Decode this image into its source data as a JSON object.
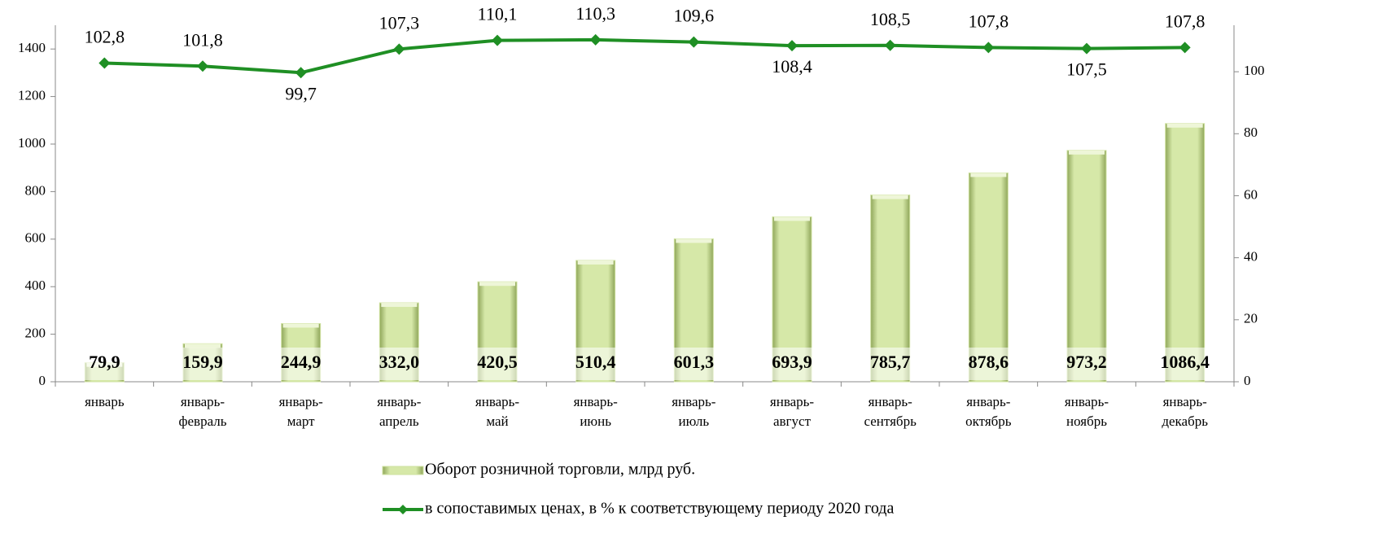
{
  "chart_data": {
    "type": "bar-line",
    "categories": [
      [
        "январь"
      ],
      [
        "январь-",
        "февраль"
      ],
      [
        "январь-",
        "март"
      ],
      [
        "январь-",
        "апрель"
      ],
      [
        "январь-",
        "май"
      ],
      [
        "январь-",
        "июнь"
      ],
      [
        "январь-",
        "июль"
      ],
      [
        "январь-",
        "август"
      ],
      [
        "январь-",
        "сентябрь"
      ],
      [
        "январь-",
        "октябрь"
      ],
      [
        "январь-",
        "ноябрь"
      ],
      [
        "январь-",
        "декабрь"
      ]
    ],
    "series": [
      {
        "name": "Оборот розничной торговли, млрд руб.",
        "type": "bar",
        "color": "#cfe2a0",
        "values": [
          79.9,
          159.9,
          244.9,
          332.0,
          420.5,
          510.4,
          601.3,
          693.9,
          785.7,
          878.6,
          973.2,
          1086.4
        ],
        "value_labels": [
          "79,9",
          "159,9",
          "244,9",
          "332,0",
          "420,5",
          "510,4",
          "601,3",
          "693,9",
          "785,7",
          "878,6",
          "973,2",
          "1086,4"
        ]
      },
      {
        "name": "в сопоставимых ценах, в % к соответствующему периоду 2020 года",
        "type": "line",
        "axis": "y2",
        "color": "#1f8f24",
        "values": [
          102.8,
          101.8,
          99.7,
          107.3,
          110.1,
          110.3,
          109.6,
          108.4,
          108.5,
          107.8,
          107.5,
          107.8
        ],
        "value_labels": [
          "102,8",
          "101,8",
          "99,7",
          "107,3",
          "110,1",
          "110,3",
          "109,6",
          "108,4",
          "108,5",
          "107,8",
          "107,5",
          "107,8"
        ]
      }
    ],
    "ylim": [
      0,
      1500
    ],
    "yticks": [
      0,
      200,
      400,
      600,
      800,
      1000,
      1200,
      1400
    ],
    "y2lim": [
      0,
      115
    ],
    "y2ticks": [
      0,
      20,
      40,
      60,
      80,
      100
    ],
    "legend": "bottom"
  }
}
